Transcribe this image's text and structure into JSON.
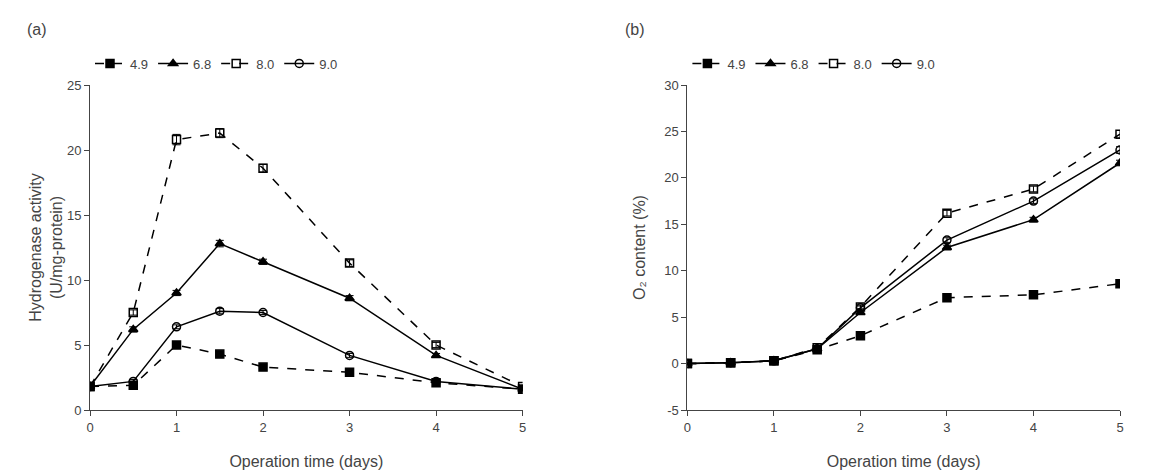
{
  "chart_data": [
    {
      "type": "line",
      "title": "(a)",
      "xlabel": "Operation time (days)",
      "ylabel": "Hydrogenase activity\n(U/mg-protein)",
      "xlim": [
        0,
        5
      ],
      "ylim": [
        0,
        25
      ],
      "xticks": [
        0,
        1,
        2,
        3,
        4,
        5
      ],
      "yticks": [
        0,
        5,
        10,
        15,
        20,
        25
      ],
      "grid": false,
      "legend": "upper left",
      "x": [
        0,
        0.5,
        1,
        1.5,
        2,
        3,
        4,
        5
      ],
      "series": [
        {
          "name": "4.9",
          "color": "#000000",
          "marker": "square",
          "line_style": "dashed",
          "values": [
            1.8,
            1.9,
            5.0,
            4.3,
            3.3,
            2.9,
            2.1,
            1.6
          ],
          "yerr": [
            0.15,
            0.15,
            0.2,
            0.15,
            0.15,
            0.15,
            0.15,
            0.1
          ]
        },
        {
          "name": "6.8",
          "color": "#000000",
          "marker": "triangle-up",
          "line_style": "solid",
          "values": [
            1.8,
            6.2,
            9.0,
            12.8,
            11.4,
            8.6,
            4.2,
            1.6
          ],
          "yerr": [
            0.15,
            0.2,
            0.2,
            0.25,
            0.2,
            0.2,
            0.15,
            0.1
          ]
        },
        {
          "name": "8.0",
          "color": "#000000",
          "marker": "square-open",
          "line_style": "dashed",
          "values": [
            1.8,
            7.5,
            20.8,
            21.3,
            18.6,
            11.3,
            5.0,
            1.8
          ],
          "yerr": [
            0.15,
            0.2,
            0.4,
            0.35,
            0.3,
            0.25,
            0.2,
            0.1
          ]
        },
        {
          "name": "9.0",
          "color": "#000000",
          "marker": "circle-open",
          "line_style": "solid",
          "values": [
            1.8,
            2.2,
            6.4,
            7.6,
            7.5,
            4.2,
            2.2,
            1.6
          ],
          "yerr": [
            0.15,
            0.15,
            0.15,
            0.2,
            0.15,
            0.15,
            0.1,
            0.1
          ]
        }
      ]
    },
    {
      "type": "line",
      "title": "(b)",
      "xlabel": "Operation time (days)",
      "ylabel": "O₂ content (%)",
      "xlim": [
        0,
        5
      ],
      "ylim": [
        -5,
        30
      ],
      "xticks": [
        0,
        1,
        2,
        3,
        4,
        5
      ],
      "yticks": [
        -5,
        0,
        5,
        10,
        15,
        20,
        25,
        30
      ],
      "grid": false,
      "legend": "upper left",
      "x": [
        0,
        0.5,
        1,
        1.5,
        2,
        3,
        4,
        5
      ],
      "series": [
        {
          "name": "4.9",
          "color": "#000000",
          "marker": "square",
          "line_style": "dashed",
          "values": [
            0.0,
            0.1,
            0.3,
            1.5,
            3.0,
            7.1,
            7.4,
            8.6
          ],
          "yerr": [
            0.05,
            0.05,
            0.05,
            0.1,
            0.15,
            0.2,
            0.2,
            0.2
          ]
        },
        {
          "name": "6.8",
          "color": "#000000",
          "marker": "triangle-up",
          "line_style": "solid",
          "values": [
            0.0,
            0.1,
            0.3,
            1.6,
            5.5,
            12.5,
            15.5,
            21.6
          ],
          "yerr": [
            0.05,
            0.05,
            0.05,
            0.1,
            0.2,
            0.25,
            0.25,
            0.3
          ]
        },
        {
          "name": "8.0",
          "color": "#000000",
          "marker": "square-open",
          "line_style": "dashed",
          "values": [
            0.0,
            0.1,
            0.3,
            1.7,
            6.1,
            16.2,
            18.8,
            24.7
          ],
          "yerr": [
            0.05,
            0.05,
            0.05,
            0.1,
            0.2,
            0.3,
            0.3,
            0.4
          ]
        },
        {
          "name": "9.0",
          "color": "#000000",
          "marker": "circle-open",
          "line_style": "solid",
          "values": [
            0.0,
            0.1,
            0.3,
            1.6,
            6.0,
            13.3,
            17.5,
            23.0
          ],
          "yerr": [
            0.05,
            0.05,
            0.05,
            0.1,
            0.2,
            0.25,
            0.25,
            0.35
          ]
        }
      ]
    }
  ]
}
